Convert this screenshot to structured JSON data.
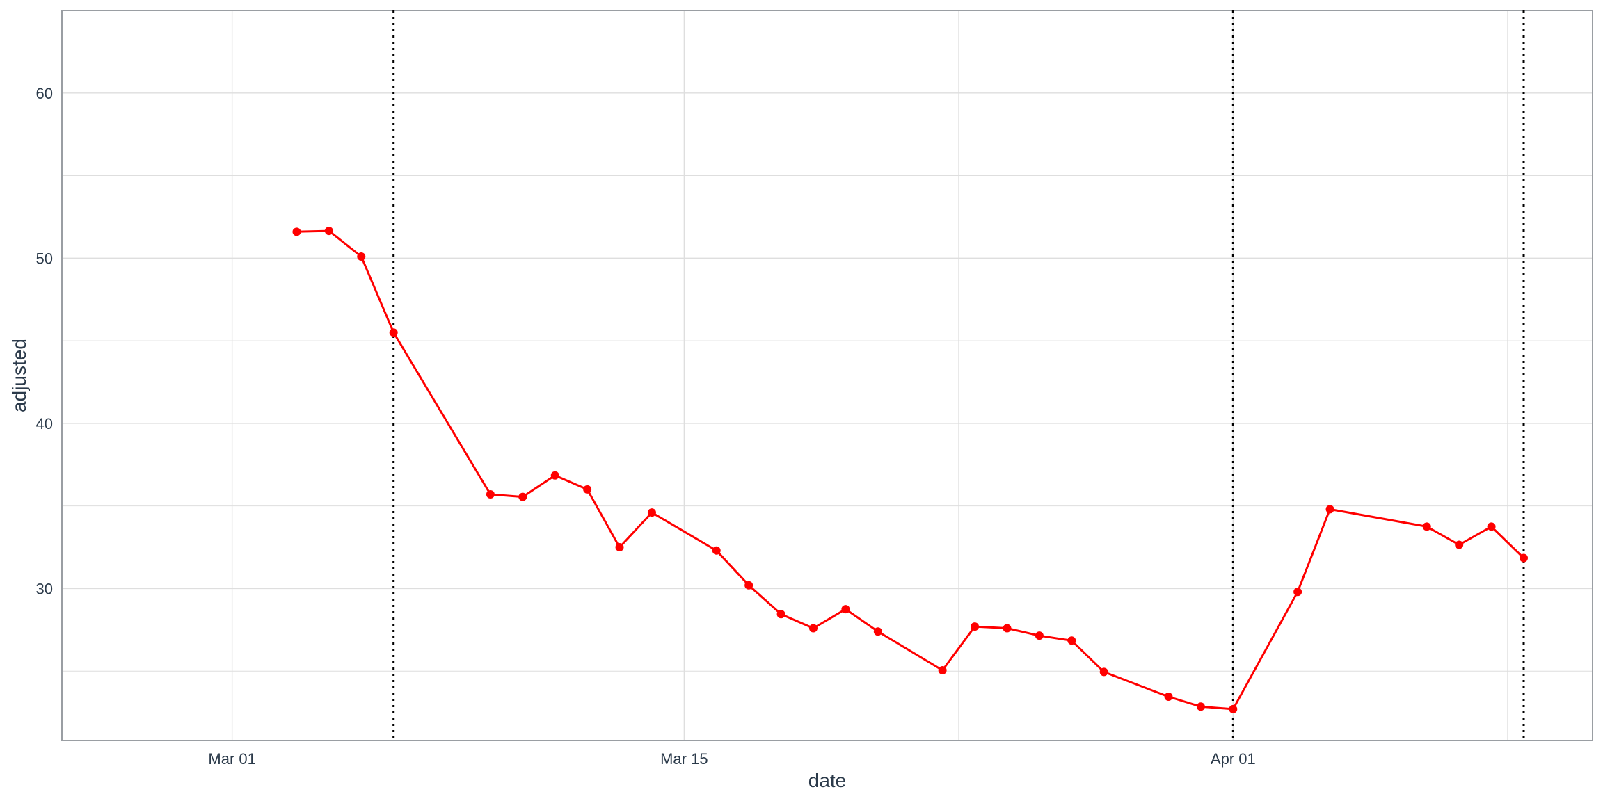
{
  "chart_data": {
    "type": "line",
    "xlabel": "date",
    "ylabel": "adjusted",
    "xlim": [
      "2023-02-25",
      "2023-04-10"
    ],
    "ylim": [
      20.8,
      65.0
    ],
    "x_ticks": [
      {
        "date": "2023-03-01",
        "label": "Mar 01"
      },
      {
        "date": "2023-03-15",
        "label": "Mar 15"
      },
      {
        "date": "2023-04-01",
        "label": "Apr 01"
      }
    ],
    "y_ticks": [
      {
        "value": 30,
        "label": "30"
      },
      {
        "value": 40,
        "label": "40"
      },
      {
        "value": 50,
        "label": "50"
      },
      {
        "value": 60,
        "label": "60"
      }
    ],
    "grid": true,
    "series": [
      {
        "color": "#ff0000",
        "points": [
          {
            "x": "2023-03-03",
            "y": 51.6
          },
          {
            "x": "2023-03-04",
            "y": 51.65
          },
          {
            "x": "2023-03-05",
            "y": 50.1
          },
          {
            "x": "2023-03-06",
            "y": 45.5
          },
          {
            "x": "2023-03-09",
            "y": 35.7
          },
          {
            "x": "2023-03-10",
            "y": 35.55
          },
          {
            "x": "2023-03-11",
            "y": 36.85
          },
          {
            "x": "2023-03-12",
            "y": 36.0
          },
          {
            "x": "2023-03-13",
            "y": 32.5
          },
          {
            "x": "2023-03-14",
            "y": 34.6
          },
          {
            "x": "2023-03-16",
            "y": 32.3
          },
          {
            "x": "2023-03-17",
            "y": 30.2
          },
          {
            "x": "2023-03-18",
            "y": 28.45
          },
          {
            "x": "2023-03-19",
            "y": 27.6
          },
          {
            "x": "2023-03-20",
            "y": 28.75
          },
          {
            "x": "2023-03-21",
            "y": 27.4
          },
          {
            "x": "2023-03-23",
            "y": 25.05
          },
          {
            "x": "2023-03-24",
            "y": 27.7
          },
          {
            "x": "2023-03-25",
            "y": 27.6
          },
          {
            "x": "2023-03-26",
            "y": 27.15
          },
          {
            "x": "2023-03-27",
            "y": 26.85
          },
          {
            "x": "2023-03-28",
            "y": 24.95
          },
          {
            "x": "2023-03-30",
            "y": 23.45
          },
          {
            "x": "2023-03-31",
            "y": 22.85
          },
          {
            "x": "2023-04-01",
            "y": 22.7
          },
          {
            "x": "2023-04-03",
            "y": 29.8
          },
          {
            "x": "2023-04-04",
            "y": 34.8
          },
          {
            "x": "2023-04-07",
            "y": 33.75
          },
          {
            "x": "2023-04-08",
            "y": 32.65
          },
          {
            "x": "2023-04-09",
            "y": 33.75
          },
          {
            "x": "2023-04-10",
            "y": 31.85
          }
        ]
      }
    ],
    "vlines": [
      {
        "x": "2023-03-06",
        "style": "dotted",
        "color": "#000000"
      },
      {
        "x": "2023-04-01",
        "style": "dotted",
        "color": "#000000"
      },
      {
        "x": "2023-04-10",
        "style": "dotted",
        "color": "#000000"
      }
    ],
    "colors": {
      "grid": "#dedede",
      "panel_border": "#9a9ea3",
      "text": "#2b3a4a"
    }
  }
}
